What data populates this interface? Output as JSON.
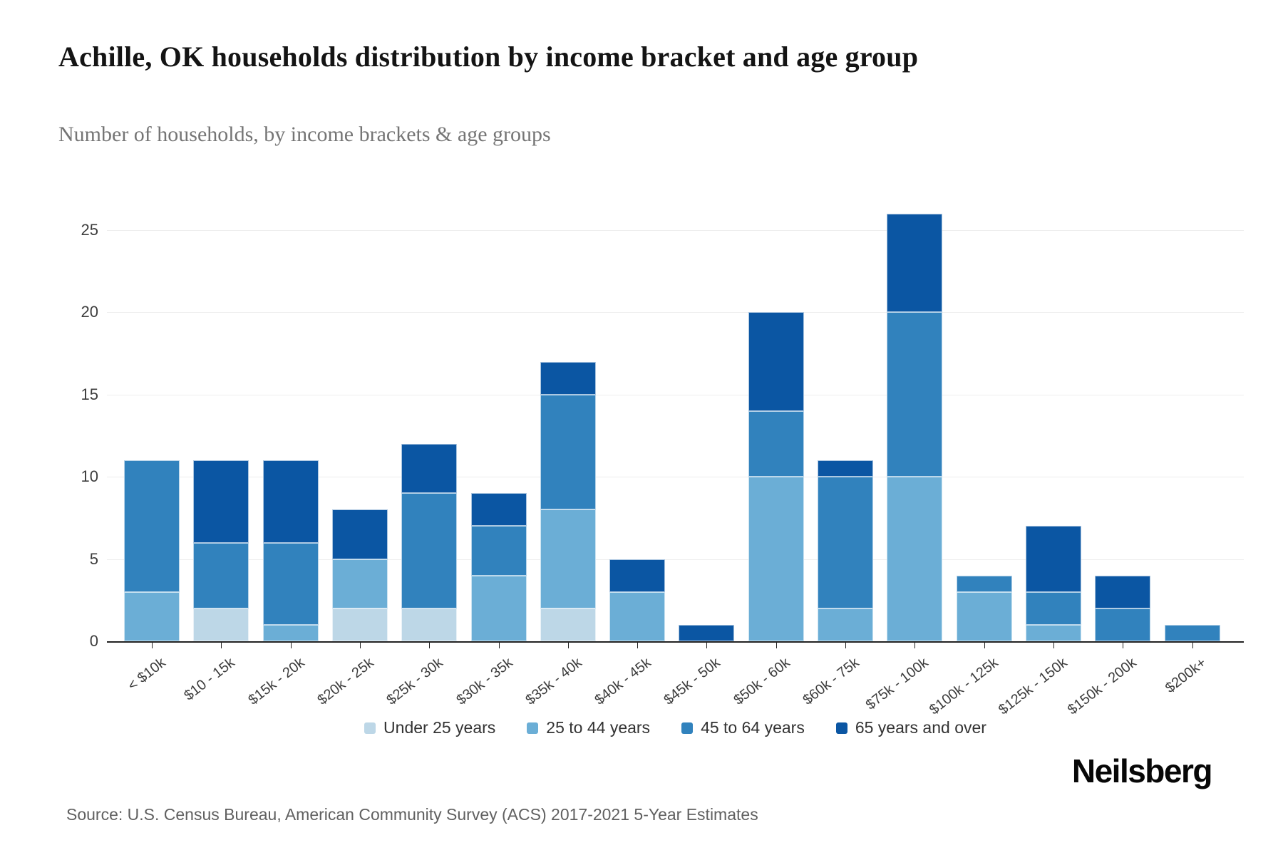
{
  "header": {
    "title": "Achille, OK households distribution by income bracket and age group",
    "subtitle": "Number of households, by income brackets & age groups"
  },
  "chart_data": {
    "type": "bar",
    "stacked": true,
    "title": "Achille, OK households distribution by income bracket and age group",
    "subtitle": "Number of households, by income brackets & age groups",
    "xlabel": "",
    "ylabel": "",
    "ylim": [
      0,
      26
    ],
    "yticks": [
      0,
      5,
      10,
      15,
      20,
      25
    ],
    "grid": true,
    "legend_position": "bottom",
    "categories": [
      "< $10k",
      "$10 - 15k",
      "$15k - 20k",
      "$20k - 25k",
      "$25k - 30k",
      "$30k - 35k",
      "$35k - 40k",
      "$40k - 45k",
      "$45k - 50k",
      "$50k - 60k",
      "$60k - 75k",
      "$75k - 100k",
      "$100k - 125k",
      "$125k - 150k",
      "$150k - 200k",
      "$200k+"
    ],
    "series": [
      {
        "name": "Under 25 years",
        "color": "#bdd7e7",
        "values": [
          0,
          2,
          0,
          2,
          2,
          0,
          2,
          0,
          0,
          0,
          0,
          0,
          0,
          0,
          0,
          0
        ]
      },
      {
        "name": "25 to 44 years",
        "color": "#6baed6",
        "values": [
          3,
          0,
          1,
          3,
          0,
          4,
          6,
          3,
          0,
          10,
          2,
          10,
          3,
          1,
          0,
          0
        ]
      },
      {
        "name": "45 to 64 years",
        "color": "#3182bd",
        "values": [
          8,
          4,
          5,
          0,
          7,
          3,
          7,
          0,
          0,
          4,
          8,
          10,
          1,
          2,
          2,
          1
        ]
      },
      {
        "name": "65 years and over",
        "color": "#0b56a3",
        "values": [
          0,
          5,
          5,
          3,
          3,
          2,
          2,
          2,
          1,
          6,
          1,
          6,
          0,
          4,
          2,
          0
        ]
      }
    ],
    "totals": [
      11,
      11,
      11,
      8,
      12,
      9,
      17,
      5,
      1,
      20,
      11,
      26,
      4,
      7,
      4,
      1
    ]
  },
  "footer": {
    "source": "Source: U.S. Census Bureau, American Community Survey (ACS) 2017-2021 5-Year Estimates",
    "logo": "Neilsberg"
  }
}
